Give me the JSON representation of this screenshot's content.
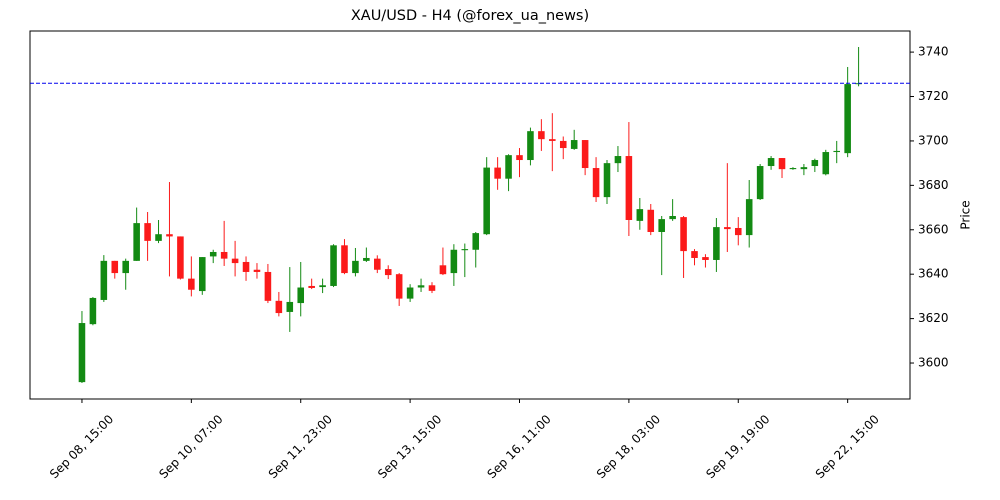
{
  "chart_data": {
    "type": "candlestick",
    "title": "XAU/USD - H4 (@forex_ua_news)",
    "ylabel": "Price",
    "categories": [
      "Sep 08, 15:00",
      null,
      null,
      null,
      null,
      null,
      null,
      null,
      null,
      null,
      "Sep 10, 07:00",
      null,
      null,
      null,
      null,
      null,
      null,
      null,
      null,
      null,
      "Sep 11, 23:00",
      null,
      null,
      null,
      null,
      null,
      null,
      null,
      null,
      null,
      "Sep 13, 15:00",
      null,
      null,
      null,
      null,
      null,
      null,
      null,
      null,
      null,
      "Sep 16, 11:00",
      null,
      null,
      null,
      null,
      null,
      null,
      null,
      null,
      null,
      "Sep 18, 03:00",
      null,
      null,
      null,
      null,
      null,
      null,
      null,
      null,
      null,
      "Sep 19, 19:00",
      null,
      null,
      null,
      null,
      null,
      null,
      null,
      null,
      null,
      "Sep 22, 15:00",
      null
    ],
    "open": [
      3591.4,
      3617.5,
      3628.4,
      3646,
      3640.5,
      3646,
      3663,
      3655,
      3658,
      3657,
      3638,
      3632.4,
      3648,
      3650,
      3647,
      3645.5,
      3642,
      3641,
      3628,
      3623,
      3627,
      3634.7,
      3634.2,
      3634.7,
      3653,
      3640.5,
      3646,
      3647,
      3642.3,
      3640,
      3629,
      3634,
      3635,
      3644,
      3640.5,
      3650.8,
      3651,
      3658,
      3688,
      3683,
      3693.6,
      3691.4,
      3704.4,
      3700.8,
      3700,
      3696.4,
      3700.4,
      3687.8,
      3674.7,
      3690,
      3693.2,
      3664,
      3669,
      3659,
      3664.8,
      3665.7,
      3650.4,
      3647.7,
      3646.4,
      3661.2,
      3660.8,
      3657.6,
      3673.8,
      3688.7,
      3692.3,
      3687.3,
      3687.3,
      3688.7,
      3685,
      3695,
      3694.5,
      3725.6
    ],
    "high": [
      3623.4,
      3629.7,
      3648.6,
      3646,
      3647,
      3670,
      3668,
      3664.4,
      3681.5,
      3657,
      3648,
      3647.7,
      3651,
      3664,
      3655,
      3648,
      3645,
      3644.6,
      3632,
      3643.2,
      3645.5,
      3638,
      3638,
      3653.5,
      3655.8,
      3651.8,
      3652,
      3648.5,
      3644,
      3640.5,
      3635.5,
      3638,
      3636.4,
      3652,
      3653.5,
      3653.8,
      3659,
      3692.7,
      3692.7,
      3694,
      3696.8,
      3706,
      3709.8,
      3712.5,
      3702,
      3705,
      3700.4,
      3692.7,
      3691.4,
      3697.7,
      3708.5,
      3674.3,
      3671.6,
      3666.2,
      3673.8,
      3666.2,
      3651.3,
      3649,
      3665.3,
      3690,
      3665.7,
      3682.4,
      3689.6,
      3693.2,
      3692.3,
      3688.2,
      3689.6,
      3692,
      3696,
      3700,
      3733.3,
      3742.3
    ],
    "low": [
      3591,
      3617,
      3627.5,
      3638,
      3633,
      3646,
      3646,
      3654,
      3639,
      3637.6,
      3630,
      3630.7,
      3645,
      3643.7,
      3639,
      3637,
      3638,
      3627,
      3621,
      3614,
      3621,
      3633.3,
      3631.5,
      3634.2,
      3640,
      3639,
      3645.5,
      3640.5,
      3637.8,
      3625.7,
      3627.5,
      3632,
      3631.5,
      3639.6,
      3634.7,
      3638.7,
      3643,
      3657.6,
      3678,
      3677.4,
      3683.7,
      3689,
      3695.5,
      3686.4,
      3691.8,
      3696,
      3684.6,
      3672.5,
      3671.6,
      3686,
      3657.2,
      3660,
      3657.6,
      3639.6,
      3664,
      3638.3,
      3644,
      3643,
      3641,
      3650,
      3653,
      3652,
      3673.4,
      3687,
      3683.3,
      3687,
      3684.6,
      3686,
      3684.5,
      3690,
      3692.7,
      3724.6
    ],
    "close": [
      3618,
      3629.3,
      3646,
      3640.5,
      3646,
      3663,
      3655,
      3658,
      3657,
      3638,
      3633,
      3647.7,
      3650,
      3647,
      3645,
      3641,
      3641,
      3628,
      3622.5,
      3627.5,
      3634,
      3633.8,
      3635,
      3653,
      3640.5,
      3646,
      3647.3,
      3642,
      3639.6,
      3629,
      3634,
      3635,
      3632.5,
      3640,
      3651,
      3651.3,
      3658.5,
      3688,
      3683,
      3693.6,
      3691.4,
      3704.4,
      3700.8,
      3700,
      3696.8,
      3700.4,
      3687.8,
      3674.7,
      3690,
      3693.2,
      3664.4,
      3669.3,
      3659,
      3664.8,
      3666.2,
      3650.4,
      3647.3,
      3646.4,
      3661.2,
      3660.3,
      3657.6,
      3673.8,
      3688.7,
      3692.3,
      3687.3,
      3687.8,
      3688.2,
      3691.4,
      3695,
      3695.5,
      3725.6,
      3726
    ],
    "up_color": "#138a13",
    "down_color": "#fb1a1a",
    "hline": 3726,
    "hline_color": "#0000ee",
    "xlim": [
      -4.75,
      75.7
    ],
    "ylim": [
      3583.8,
      3749.5
    ],
    "yticks": [
      3600,
      3620,
      3640,
      3660,
      3680,
      3700,
      3720,
      3740
    ]
  }
}
